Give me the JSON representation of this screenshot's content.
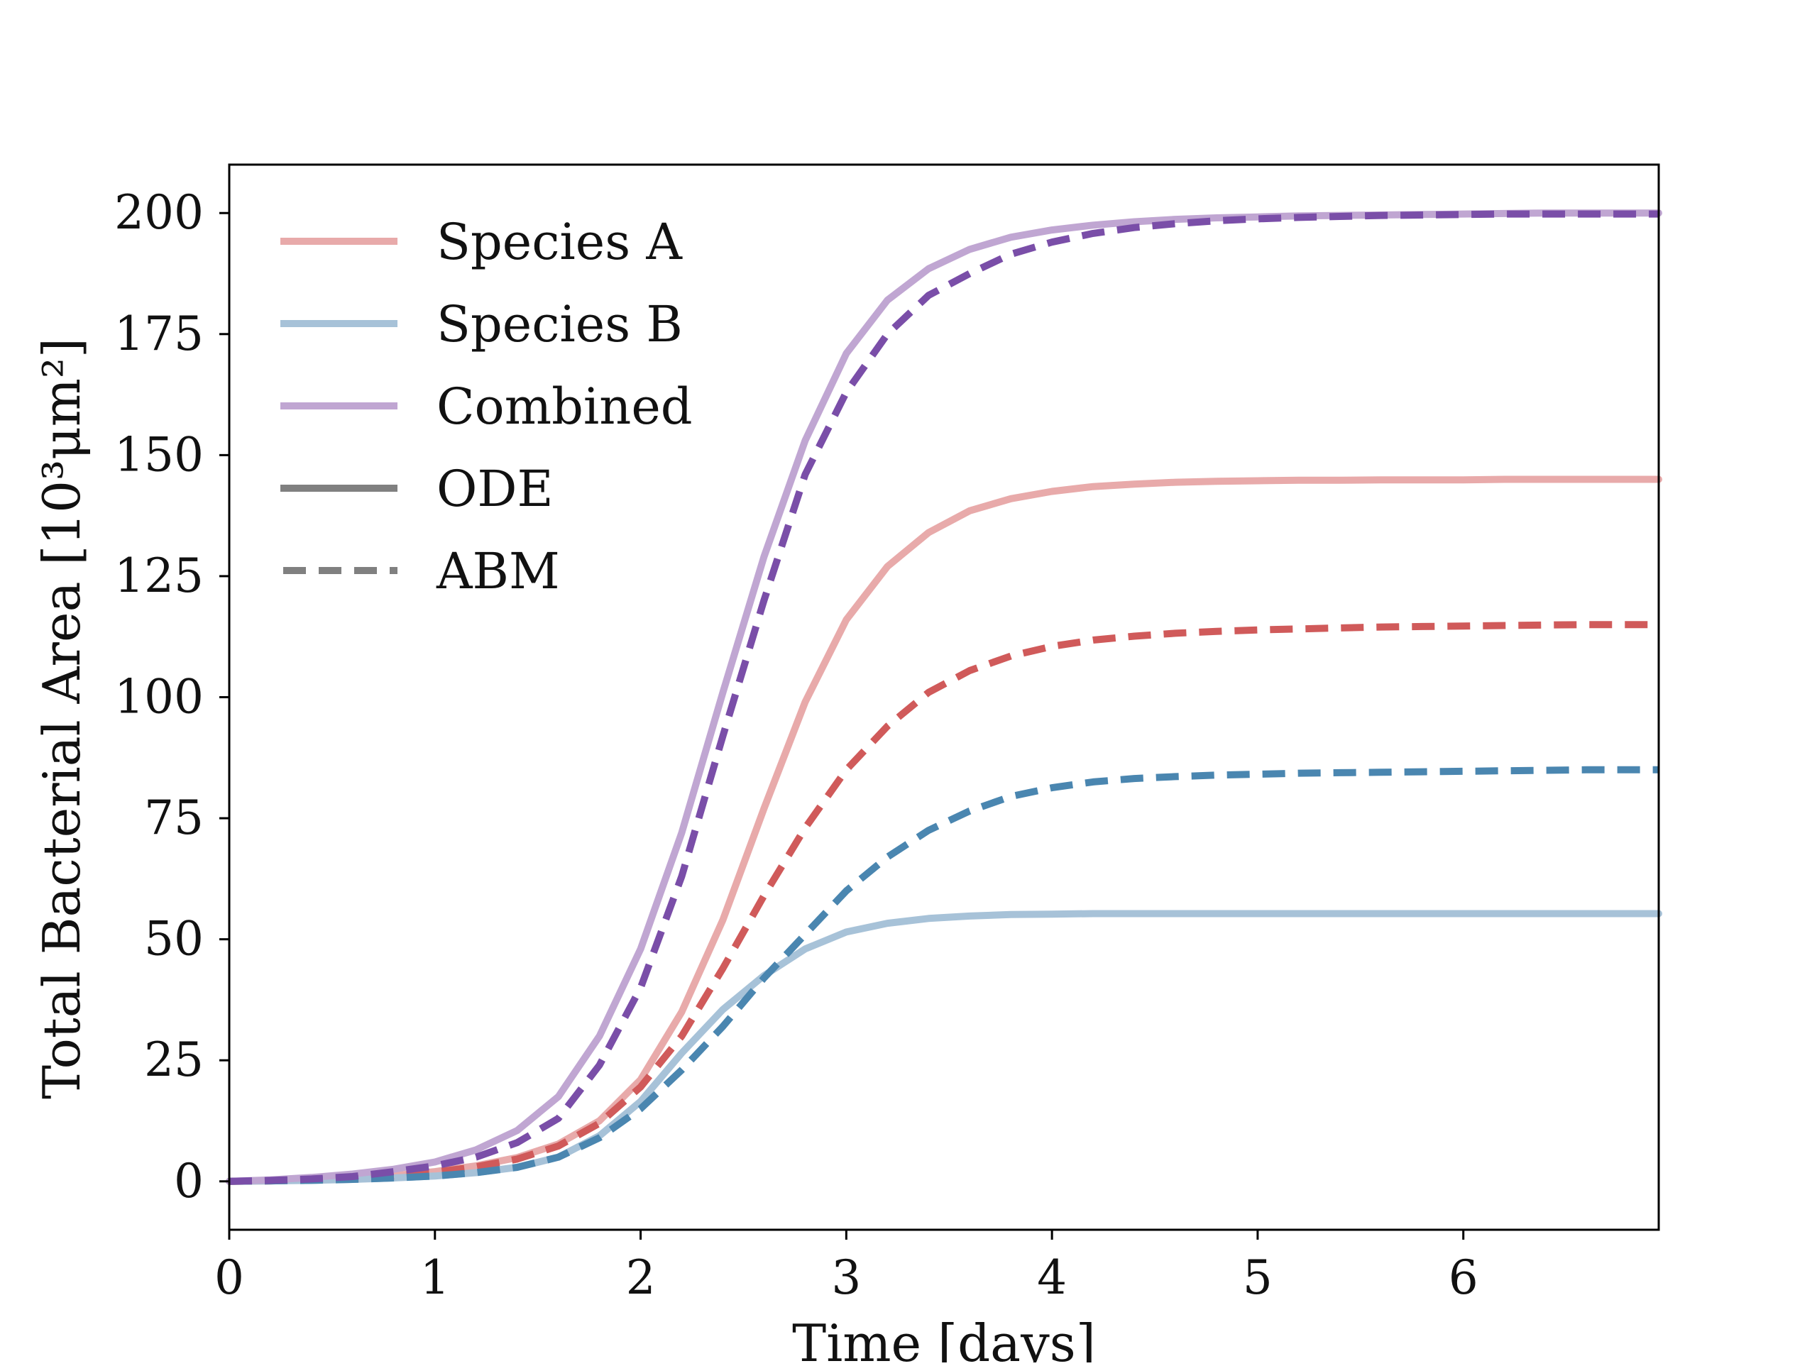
{
  "chart_data": {
    "type": "line",
    "xlabel": "Time [days]",
    "ylabel": "Total Bacterial Area [10³μm²]",
    "xlim": [
      0,
      6.95
    ],
    "ylim": [
      -10,
      210
    ],
    "xticks": [
      0,
      1,
      2,
      3,
      4,
      5,
      6
    ],
    "yticks": [
      0,
      25,
      50,
      75,
      100,
      125,
      150,
      175,
      200
    ],
    "grid": false,
    "legend_position": "top-left",
    "x": [
      0,
      0.2,
      0.4,
      0.6,
      0.8,
      1.0,
      1.2,
      1.4,
      1.6,
      1.8,
      2.0,
      2.2,
      2.4,
      2.6,
      2.8,
      3.0,
      3.2,
      3.4,
      3.6,
      3.8,
      4.0,
      4.2,
      4.4,
      4.6,
      4.8,
      5.0,
      5.2,
      5.4,
      5.6,
      5.8,
      6.0,
      6.2,
      6.4,
      6.6,
      6.8,
      6.95
    ],
    "colors": {
      "species_a": "#e8aaaa",
      "species_a_abm": "#d05a5a",
      "species_b": "#a7c2d8",
      "species_b_abm": "#4a86b0",
      "combined": "#c0a6d2",
      "combined_abm": "#7a4ea8",
      "style_key": "#808080"
    },
    "series": [
      {
        "name": "Species A",
        "model": "ODE",
        "color_key": "species_a",
        "dashed": false,
        "values": [
          0,
          0.1,
          0.3,
          0.6,
          1.2,
          2.0,
          3.2,
          4.9,
          7.7,
          12.5,
          21,
          35,
          54,
          77,
          99,
          116,
          127,
          134,
          138.5,
          141,
          142.5,
          143.5,
          144,
          144.4,
          144.6,
          144.7,
          144.8,
          144.8,
          144.9,
          144.9,
          144.9,
          145,
          145,
          145,
          145,
          145
        ]
      },
      {
        "name": "Species B",
        "model": "ODE",
        "color_key": "species_b",
        "dashed": false,
        "values": [
          0,
          0.1,
          0.2,
          0.4,
          0.7,
          1.1,
          1.8,
          2.9,
          5,
          9.4,
          16.5,
          26.5,
          35.5,
          42.5,
          48,
          51.5,
          53.3,
          54.3,
          54.8,
          55.1,
          55.2,
          55.3,
          55.3,
          55.3,
          55.3,
          55.3,
          55.3,
          55.3,
          55.3,
          55.3,
          55.3,
          55.3,
          55.3,
          55.3,
          55.3,
          55.3
        ]
      },
      {
        "name": "Combined",
        "model": "ODE",
        "color_key": "combined",
        "dashed": false,
        "values": [
          0,
          0.3,
          0.8,
          1.5,
          2.5,
          4,
          6.5,
          10.5,
          17.5,
          30,
          48,
          72,
          101,
          129,
          153,
          171,
          182,
          188.5,
          192.5,
          195,
          196.5,
          197.5,
          198.2,
          198.7,
          199,
          199.2,
          199.4,
          199.5,
          199.6,
          199.7,
          199.8,
          199.9,
          200,
          200,
          200,
          200
        ]
      },
      {
        "name": "Species A",
        "model": "ABM",
        "color_key": "species_a_abm",
        "dashed": true,
        "values": [
          0,
          0.1,
          0.3,
          0.6,
          1.1,
          1.9,
          3.0,
          4.6,
          7.3,
          12,
          19.5,
          30,
          44,
          59,
          73,
          85,
          94,
          101,
          105.5,
          108.5,
          110.5,
          111.8,
          112.6,
          113.2,
          113.6,
          113.9,
          114.1,
          114.3,
          114.5,
          114.6,
          114.7,
          114.8,
          114.9,
          115,
          115,
          115
        ]
      },
      {
        "name": "Species B",
        "model": "ABM",
        "color_key": "species_b_abm",
        "dashed": true,
        "values": [
          0,
          0.1,
          0.2,
          0.4,
          0.7,
          1.1,
          1.8,
          2.9,
          5,
          9,
          15,
          23,
          32,
          42,
          51,
          60,
          67,
          72.5,
          76.5,
          79.5,
          81.3,
          82.5,
          83.2,
          83.6,
          83.9,
          84.1,
          84.3,
          84.4,
          84.5,
          84.6,
          84.7,
          84.8,
          84.9,
          85,
          85,
          85
        ]
      },
      {
        "name": "Combined",
        "model": "ABM",
        "color_key": "combined_abm",
        "dashed": true,
        "values": [
          0,
          0.2,
          0.5,
          1,
          2,
          3.2,
          5,
          8,
          13,
          24,
          40,
          63,
          92,
          120,
          146,
          163,
          175,
          183,
          187.5,
          191.5,
          194,
          195.8,
          197,
          197.8,
          198.4,
          198.8,
          199.1,
          199.3,
          199.5,
          199.6,
          199.7,
          199.8,
          199.8,
          199.8,
          199.8,
          199.8
        ]
      }
    ],
    "legend": [
      {
        "label": "Species A",
        "color_key": "species_a",
        "dashed": false
      },
      {
        "label": "Species B",
        "color_key": "species_b",
        "dashed": false
      },
      {
        "label": "Combined",
        "color_key": "combined",
        "dashed": false
      },
      {
        "label": "ODE",
        "color_key": "style_key",
        "dashed": false
      },
      {
        "label": "ABM",
        "color_key": "style_key",
        "dashed": true
      }
    ]
  }
}
